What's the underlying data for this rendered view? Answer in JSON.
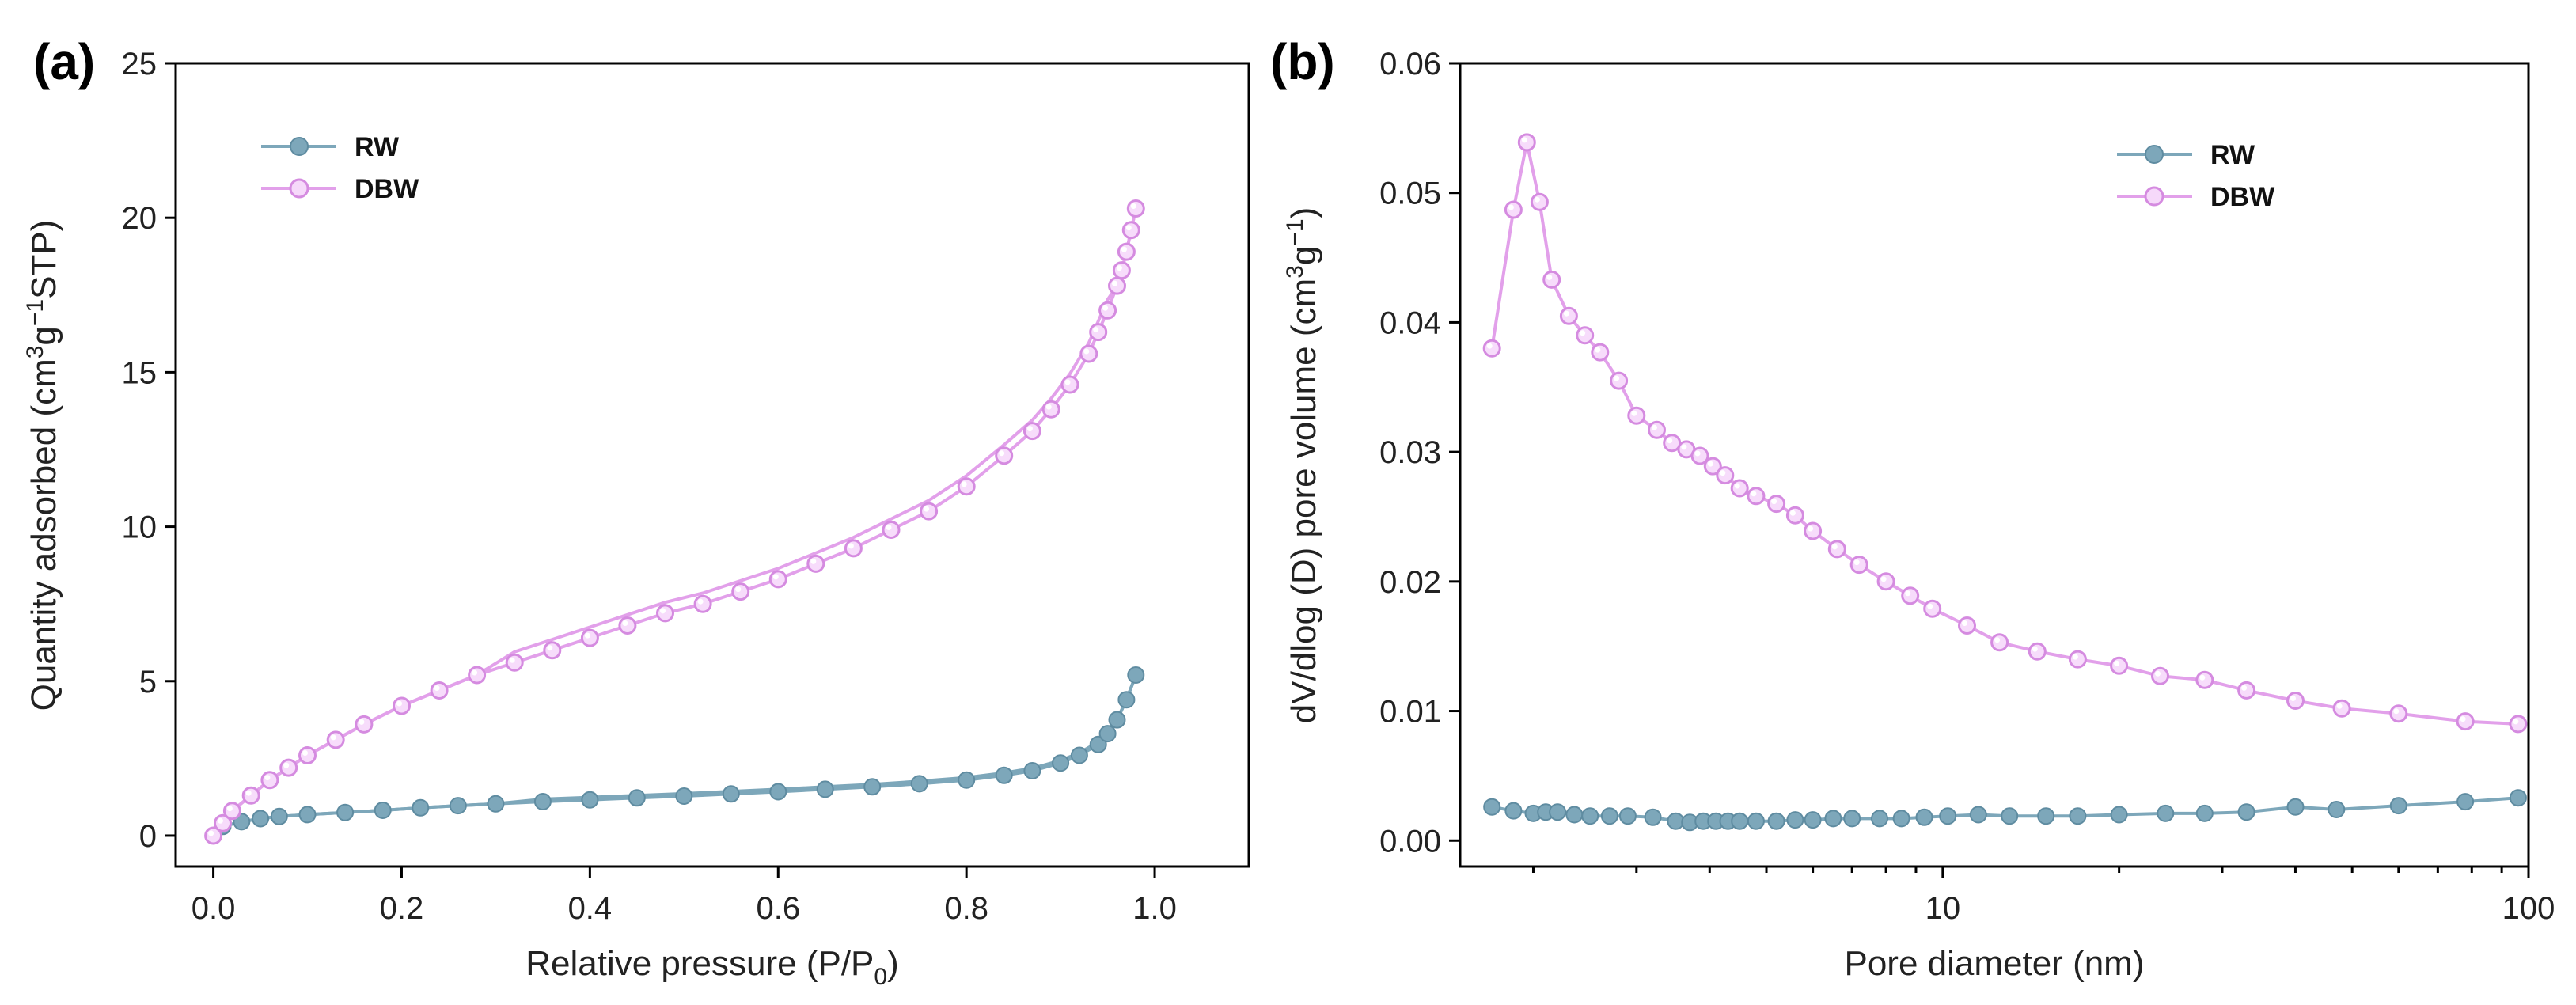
{
  "chart_data": [
    {
      "panel": "(a)",
      "type": "line",
      "xlabel": "Relative pressure (P/P",
      "xlabel_sub": "0",
      "xlabel_tail": ")",
      "ylabel_prefix": "Quantity adsorbed (cm",
      "ylabel_sup1": "3",
      "ylabel_mid": "g",
      "ylabel_sup2": "−1",
      "ylabel_tail": "STP)",
      "xlim": [
        -0.04,
        1.1
      ],
      "ylim": [
        -1,
        25
      ],
      "xticks": [
        0.0,
        0.2,
        0.4,
        0.6,
        0.8,
        1.0
      ],
      "xtick_labels": [
        "0.0",
        "0.2",
        "0.4",
        "0.6",
        "0.8",
        "1.0"
      ],
      "yticks": [
        0,
        5,
        10,
        15,
        20,
        25
      ],
      "ytick_labels": [
        "0",
        "5",
        "10",
        "15",
        "20",
        "25"
      ],
      "legend": [
        "RW",
        "DBW"
      ],
      "legend_position": "top-left",
      "series": [
        {
          "name": "RW",
          "color": "#7da7ba",
          "x": [
            0.0,
            0.01,
            0.03,
            0.05,
            0.07,
            0.1,
            0.14,
            0.18,
            0.22,
            0.26,
            0.3,
            0.35,
            0.4,
            0.45,
            0.5,
            0.55,
            0.6,
            0.65,
            0.7,
            0.75,
            0.8,
            0.84,
            0.87,
            0.9,
            0.92,
            0.94,
            0.95,
            0.96,
            0.97,
            0.98
          ],
          "y": [
            0.0,
            0.3,
            0.45,
            0.55,
            0.62,
            0.68,
            0.75,
            0.82,
            0.9,
            0.97,
            1.03,
            1.1,
            1.16,
            1.22,
            1.28,
            1.35,
            1.42,
            1.5,
            1.58,
            1.68,
            1.8,
            1.95,
            2.1,
            2.35,
            2.6,
            2.95,
            3.3,
            3.75,
            4.4,
            5.2
          ]
        },
        {
          "name": "DBW",
          "color": "#e2a0ea",
          "x": [
            0.0,
            0.01,
            0.02,
            0.04,
            0.06,
            0.08,
            0.1,
            0.13,
            0.16,
            0.2,
            0.24,
            0.28,
            0.32,
            0.36,
            0.4,
            0.44,
            0.48,
            0.52,
            0.56,
            0.6,
            0.64,
            0.68,
            0.72,
            0.76,
            0.8,
            0.84,
            0.87,
            0.89,
            0.91,
            0.93,
            0.94,
            0.95,
            0.96,
            0.965,
            0.97,
            0.975,
            0.98
          ],
          "y": [
            0.0,
            0.4,
            0.8,
            1.3,
            1.8,
            2.2,
            2.6,
            3.1,
            3.6,
            4.2,
            4.7,
            5.2,
            5.6,
            6.0,
            6.4,
            6.8,
            7.2,
            7.5,
            7.9,
            8.3,
            8.8,
            9.3,
            9.9,
            10.5,
            11.3,
            12.3,
            13.1,
            13.8,
            14.6,
            15.6,
            16.3,
            17.0,
            17.8,
            18.3,
            18.9,
            19.6,
            20.3
          ]
        }
      ]
    },
    {
      "panel": "(b)",
      "type": "line",
      "xscale": "log",
      "xlabel": "Pore diameter (nm)",
      "ylabel_prefix": "dV/dlog (D) pore volume (cm",
      "ylabel_sup1": "3",
      "ylabel_mid": "g",
      "ylabel_sup2": "−1",
      "ylabel_tail": ")",
      "xlim": [
        1.5,
        100
      ],
      "ylim": [
        -0.002,
        0.06
      ],
      "xticks": [
        10,
        100
      ],
      "xtick_labels": [
        "10",
        "100"
      ],
      "yticks": [
        0.0,
        0.01,
        0.02,
        0.03,
        0.04,
        0.05,
        0.06
      ],
      "ytick_labels": [
        "0.00",
        "0.01",
        "0.02",
        "0.03",
        "0.04",
        "0.05",
        "0.06"
      ],
      "legend": [
        "RW",
        "DBW"
      ],
      "legend_position": "top-right",
      "series": [
        {
          "name": "RW",
          "color": "#7da7ba",
          "x": [
            1.7,
            1.85,
            2.0,
            2.1,
            2.2,
            2.35,
            2.5,
            2.7,
            2.9,
            3.2,
            3.5,
            3.7,
            3.9,
            4.1,
            4.3,
            4.5,
            4.8,
            5.2,
            5.6,
            6.0,
            6.5,
            7.0,
            7.8,
            8.5,
            9.3,
            10.2,
            11.5,
            13,
            15,
            17,
            20,
            24,
            28,
            33,
            40,
            47,
            60,
            78,
            96
          ],
          "y": [
            0.0026,
            0.0023,
            0.0021,
            0.0022,
            0.0022,
            0.002,
            0.0019,
            0.0019,
            0.0019,
            0.0018,
            0.0015,
            0.0014,
            0.0015,
            0.0015,
            0.0015,
            0.0015,
            0.0015,
            0.0015,
            0.0016,
            0.0016,
            0.0017,
            0.0017,
            0.0017,
            0.0017,
            0.0018,
            0.0019,
            0.002,
            0.0019,
            0.0019,
            0.0019,
            0.002,
            0.0021,
            0.0021,
            0.0022,
            0.0026,
            0.0024,
            0.0027,
            0.003,
            0.0033
          ]
        },
        {
          "name": "DBW",
          "color": "#e2a0ea",
          "x": [
            1.7,
            1.85,
            1.95,
            2.05,
            2.15,
            2.3,
            2.45,
            2.6,
            2.8,
            3.0,
            3.25,
            3.45,
            3.65,
            3.85,
            4.05,
            4.25,
            4.5,
            4.8,
            5.2,
            5.6,
            6.0,
            6.6,
            7.2,
            8.0,
            8.8,
            9.6,
            11,
            12.5,
            14.5,
            17,
            20,
            23.5,
            28,
            33,
            40,
            48,
            60,
            78,
            96
          ],
          "y": [
            0.038,
            0.0487,
            0.0539,
            0.0493,
            0.0433,
            0.0405,
            0.039,
            0.0377,
            0.0355,
            0.0328,
            0.0317,
            0.0307,
            0.0302,
            0.0297,
            0.0289,
            0.0282,
            0.0272,
            0.0266,
            0.026,
            0.0251,
            0.0239,
            0.0225,
            0.0213,
            0.02,
            0.0189,
            0.0179,
            0.0166,
            0.0153,
            0.0146,
            0.014,
            0.0135,
            0.0127,
            0.0124,
            0.0116,
            0.0108,
            0.0102,
            0.0098,
            0.0092,
            0.009
          ]
        }
      ]
    }
  ]
}
